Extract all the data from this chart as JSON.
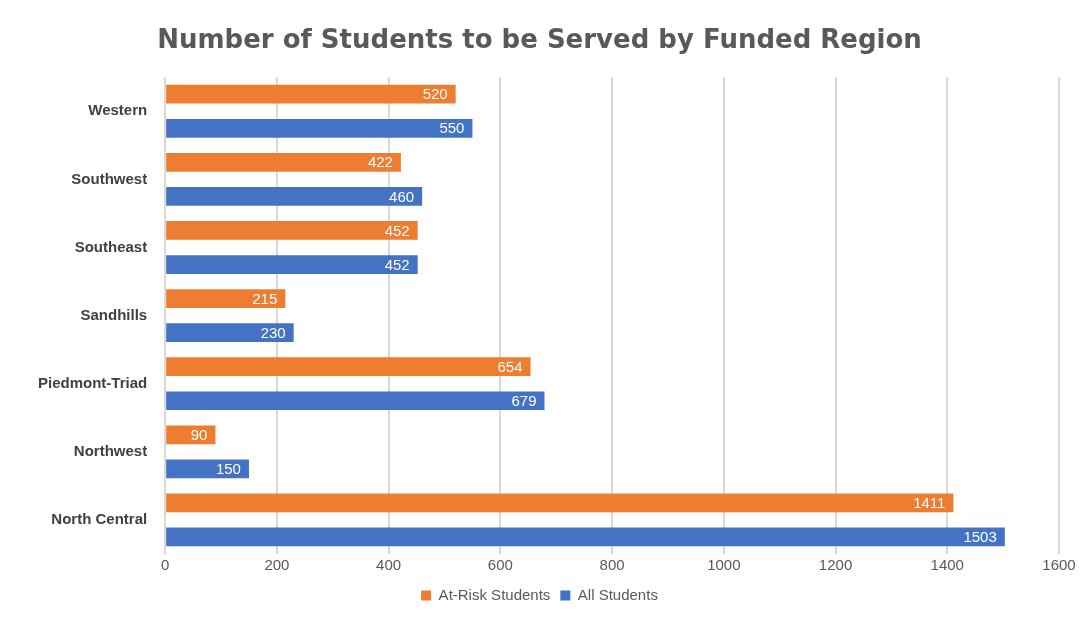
{
  "chart_data": {
    "type": "bar",
    "orientation": "horizontal",
    "title": "Number of Students to be Served by Funded Region",
    "categories": [
      "Western",
      "Southwest",
      "Southeast",
      "Sandhills",
      "Piedmont-Triad",
      "Northwest",
      "North Central"
    ],
    "series": [
      {
        "name": "At-Risk Students",
        "color": "#ed7d31",
        "values": [
          520,
          422,
          452,
          215,
          654,
          90,
          1411
        ]
      },
      {
        "name": "All Students",
        "color": "#4472c4",
        "values": [
          550,
          460,
          452,
          230,
          679,
          150,
          1503
        ]
      }
    ],
    "xlim": [
      0,
      1600
    ],
    "xticks": [
      0,
      200,
      400,
      600,
      800,
      1000,
      1200,
      1400,
      1600
    ],
    "grid": "x",
    "legend": "bottom",
    "data_labels": true
  }
}
